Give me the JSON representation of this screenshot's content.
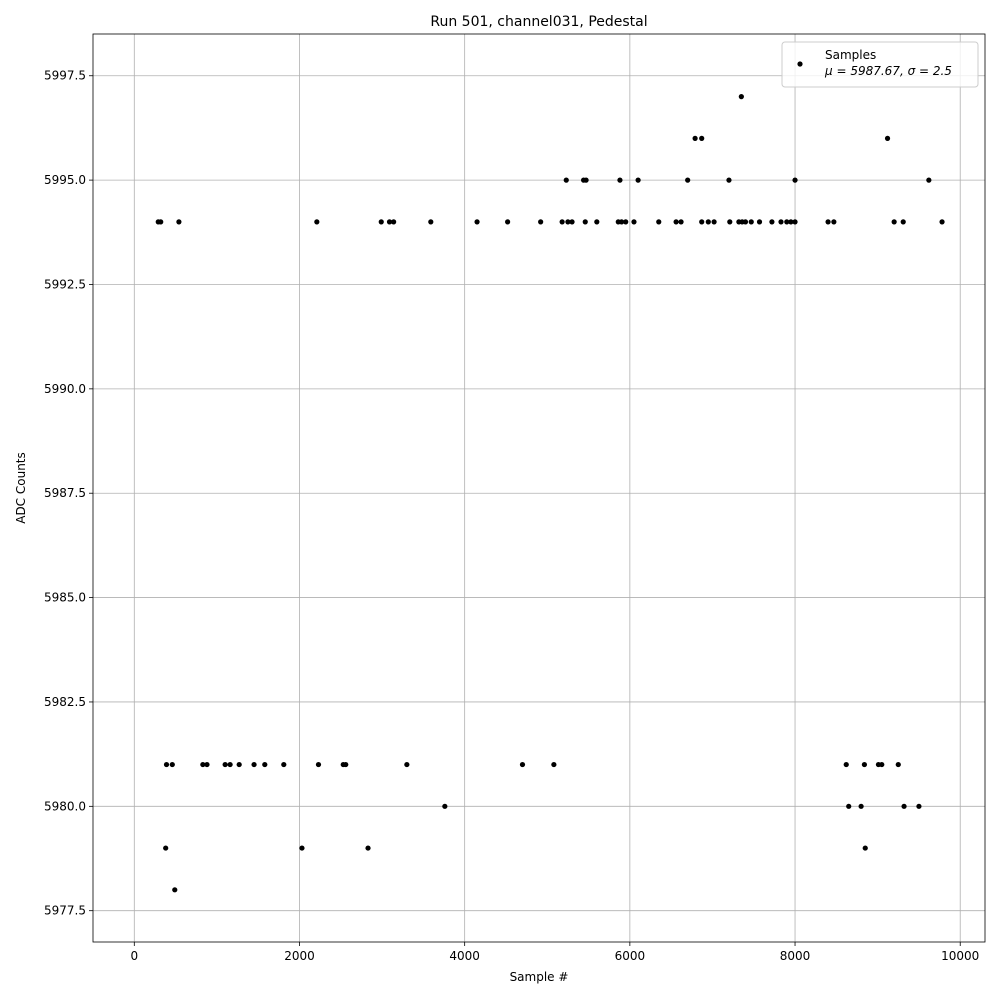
{
  "chart_data": {
    "type": "scatter",
    "title": "Run 501, channel031, Pedestal",
    "xlabel": "Sample #",
    "ylabel": "ADC Counts",
    "xlim": [
      -500,
      10300
    ],
    "ylim": [
      5976.75,
      5998.5
    ],
    "grid": true,
    "x_ticks": [
      0,
      2000,
      4000,
      6000,
      8000,
      10000
    ],
    "x_tick_labels": [
      "0",
      "2000",
      "4000",
      "6000",
      "8000",
      "10000"
    ],
    "y_ticks": [
      5977.5,
      5980.0,
      5982.5,
      5985.0,
      5987.5,
      5990.0,
      5992.5,
      5995.0,
      5997.5
    ],
    "y_tick_labels": [
      "5977.5",
      "5980.0",
      "5982.5",
      "5985.0",
      "5987.5",
      "5990.0",
      "5992.5",
      "5995.0",
      "5997.5"
    ],
    "legend": {
      "placement": "top-right",
      "entry_label": "Samples",
      "entry_stats": "μ = 5987.67, σ = 2.5"
    },
    "marker_color": "#000000",
    "series": [
      {
        "name": "Samples",
        "points": [
          [
            380,
            5979
          ],
          [
            2030,
            5979
          ],
          [
            2830,
            5979
          ],
          [
            8850,
            5979
          ],
          [
            490,
            5978
          ],
          [
            3760,
            5980
          ],
          [
            8650,
            5980
          ],
          [
            8800,
            5980
          ],
          [
            9320,
            5980
          ],
          [
            9500,
            5980
          ],
          [
            390,
            5981
          ],
          [
            460,
            5981
          ],
          [
            830,
            5981
          ],
          [
            880,
            5981
          ],
          [
            1100,
            5981
          ],
          [
            1160,
            5981
          ],
          [
            1270,
            5981
          ],
          [
            1450,
            5981
          ],
          [
            1580,
            5981
          ],
          [
            1810,
            5981
          ],
          [
            2230,
            5981
          ],
          [
            2530,
            5981
          ],
          [
            2560,
            5981
          ],
          [
            3300,
            5981
          ],
          [
            4700,
            5981
          ],
          [
            5080,
            5981
          ],
          [
            8620,
            5981
          ],
          [
            8840,
            5981
          ],
          [
            9010,
            5981
          ],
          [
            9050,
            5981
          ],
          [
            9250,
            5981
          ],
          [
            7350,
            5997
          ],
          [
            6790,
            5996
          ],
          [
            6870,
            5996
          ],
          [
            9120,
            5996
          ],
          [
            5230,
            5995
          ],
          [
            5440,
            5995
          ],
          [
            5470,
            5995
          ],
          [
            5880,
            5995
          ],
          [
            6100,
            5995
          ],
          [
            6700,
            5995
          ],
          [
            7200,
            5995
          ],
          [
            8000,
            5995
          ],
          [
            9620,
            5995
          ],
          [
            290,
            5994
          ],
          [
            320,
            5994
          ],
          [
            540,
            5994
          ],
          [
            2210,
            5994
          ],
          [
            2990,
            5994
          ],
          [
            3090,
            5994
          ],
          [
            3140,
            5994
          ],
          [
            3590,
            5994
          ],
          [
            4150,
            5994
          ],
          [
            4520,
            5994
          ],
          [
            4920,
            5994
          ],
          [
            5180,
            5994
          ],
          [
            5250,
            5994
          ],
          [
            5300,
            5994
          ],
          [
            5460,
            5994
          ],
          [
            5600,
            5994
          ],
          [
            5860,
            5994
          ],
          [
            5900,
            5994
          ],
          [
            5950,
            5994
          ],
          [
            6050,
            5994
          ],
          [
            6350,
            5994
          ],
          [
            6560,
            5994
          ],
          [
            6620,
            5994
          ],
          [
            6870,
            5994
          ],
          [
            6950,
            5994
          ],
          [
            7020,
            5994
          ],
          [
            7210,
            5994
          ],
          [
            7320,
            5994
          ],
          [
            7360,
            5994
          ],
          [
            7400,
            5994
          ],
          [
            7470,
            5994
          ],
          [
            7570,
            5994
          ],
          [
            7720,
            5994
          ],
          [
            7830,
            5994
          ],
          [
            7900,
            5994
          ],
          [
            7950,
            5994
          ],
          [
            8000,
            5994
          ],
          [
            8400,
            5994
          ],
          [
            8470,
            5994
          ],
          [
            9200,
            5994
          ],
          [
            9310,
            5994
          ],
          [
            9780,
            5994
          ]
        ]
      }
    ]
  }
}
